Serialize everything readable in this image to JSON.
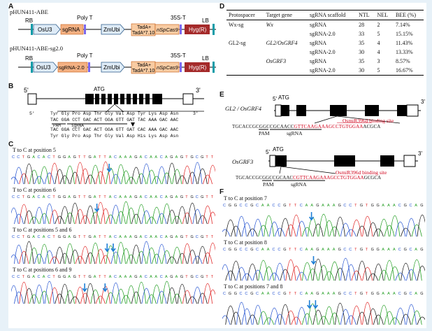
{
  "panels": {
    "a": "A",
    "b": "B",
    "c": "C",
    "d": "D",
    "e": "E",
    "f": "F"
  },
  "construct_a": {
    "name1": "pHUN411-ABE",
    "name2": "pHUN411-ABE-sg2.0",
    "rb": "RB",
    "lb": "LB",
    "polyt": "Poly T",
    "t35s": "35S-T",
    "osu3": "OsU3",
    "sgrna": "sgRNA",
    "sgrna2": "sgRNA-2.0",
    "zmubi": "ZmUbi",
    "tada1": "TadA+",
    "tada2": "TadA*7.10",
    "nspcas9": "nSpCas9",
    "hyg": "Hyg(R)",
    "colors": {
      "sgrna": "#f4b183",
      "tada": "#f8cba2",
      "hyg": "#a52a2a",
      "arrow": "#deebf7",
      "purple": "#7b68ee"
    }
  },
  "gene_b": {
    "five": "5'",
    "three": "3'",
    "atg": "ATG",
    "aa_top": "Tyr Gly Pro Asp Thr Gly Val Asp Tyr Lys Asp Asn",
    "seq1": "TAC GGA CCT GAC ACT GGA GTT GAT TAC AAA GAC AAC",
    "seq2": "TAC GGA CCT GAC ACT GGA GTT GAT CAC AAA GAC AAC",
    "aa_bottom": "Tyr Gly Pro Asp Thr Gly Val Asp His Lys Asp Asn",
    "pam": "PAM",
    "sgrna": "sgRNA"
  },
  "table_d": {
    "headers": [
      "Protospacer",
      "Target gene",
      "sgRNA scaffold",
      "NTL",
      "NEL",
      "BEE (%)"
    ],
    "rows": [
      [
        "Wx-sg",
        "Wx",
        "sgRNA",
        "28",
        "2",
        "7.14%"
      ],
      [
        "",
        "",
        "sgRNA-2.0",
        "33",
        "5",
        "15.15%"
      ],
      [
        "GL2-sg",
        "GL2/OsGRF4",
        "sgRNA",
        "35",
        "4",
        "11.43%"
      ],
      [
        "",
        "",
        "sgRNA-2.0",
        "30",
        "4",
        "13.33%"
      ],
      [
        "",
        "OsGRF3",
        "sgRNA",
        "35",
        "3",
        "8.57%"
      ],
      [
        "",
        "",
        "sgRNA-2.0",
        "30",
        "5",
        "16.67%"
      ]
    ]
  },
  "gene_e": {
    "gene1": "GL2 / OsGRF4",
    "gene2": "OsGRF3",
    "atg": "ATG",
    "five": "5'",
    "three": "3'",
    "site": "OsmiR396d binding site",
    "seq1_black": "TGCACCGCGGCCGCAACC",
    "seq1_red": "GTTCAAGAAAGCCTGTGGAA",
    "seq1_tail": "ACGCA",
    "seq2_black": "TGCACCGCGGCCGCAAC",
    "seq2_red": "CGTTCAAGAAAGCCTGTGGAA",
    "seq2_tail": "GCGCA",
    "pam": "PAM",
    "sgrna": "sgRNA"
  },
  "chrom_c": [
    {
      "label": "T to C at position 5",
      "seq": "C C T G A C A C T G G A G T T G A T T A C A A A G A C A A C A G A G T G C G T T"
    },
    {
      "label": "T to C at position 6",
      "seq": "C C T G A C A C T G G A G T T G A T T A C A A A G A C A A C A G A G T G C G T T"
    },
    {
      "label": "T to C at positions 5 and 6",
      "seq": "C C T G A C A C T G G A G T T G A T T A C A A A G A C A A C A G A G T G C G T T"
    },
    {
      "label": "T to C at positions 6 and 9",
      "seq": "C C T G A C A C T G G A G T T G A T T A C A A A G A C A A C A G A G T G C G T T"
    }
  ],
  "chrom_f": [
    {
      "label": "T to C at position 7",
      "seq": "C G G C C G C A A C C G T T C A A G A A A G C C T G T G G A A A C G C A G"
    },
    {
      "label": "T to C at position 8",
      "seq": "C G G C C G C A A C C G T T C A A G A A A G C C T G T G G A A A C G C A G"
    },
    {
      "label": "T to C at positions 7 and 8",
      "seq": "C G G C C G C A A C C G T T C A A G A A A G C C T G T G G A A A C G C A G"
    }
  ]
}
